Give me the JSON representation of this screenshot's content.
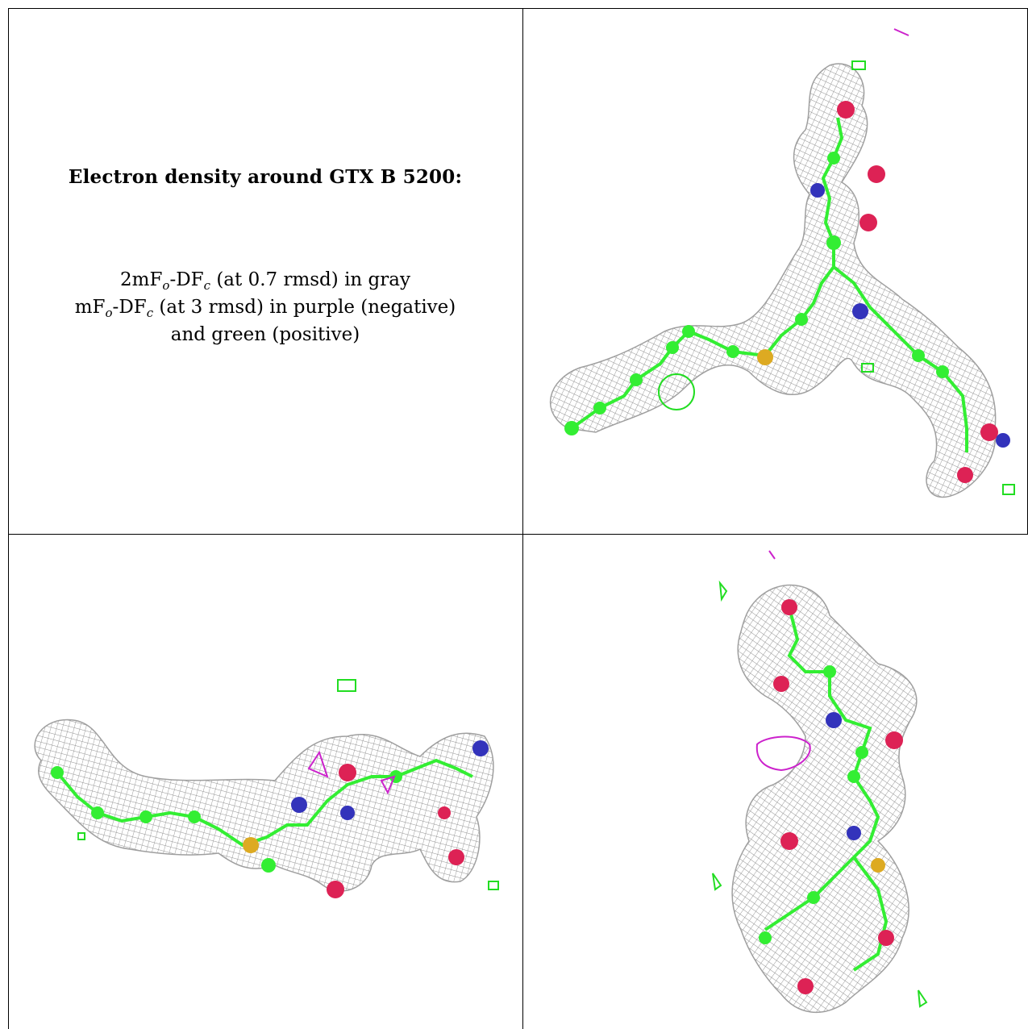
{
  "legend": {
    "title": "Electron density around GTX B 5200:",
    "line1": {
      "prefix": "2mF",
      "sub1": "o",
      "mid": "-DF",
      "sub2": "c",
      "suffix": " (at 0.7 rmsd) in gray"
    },
    "line2": {
      "prefix": "mF",
      "sub1": "o",
      "mid": "-DF",
      "sub2": "c",
      "suffix": " (at 3 rmsd) in purple (negative)"
    },
    "line3": "and green (positive)"
  },
  "colors": {
    "mesh_gray": "#a9a9a9",
    "carbon_green": "#33ee33",
    "positive_density_green": "#22dd22",
    "negative_density_purple": "#cc22cc",
    "oxygen_red": "#dd2255",
    "nitrogen_blue": "#3333bb",
    "sulfur_yellow": "#ddaa22",
    "grid_line": "#000000"
  },
  "panels": [
    {
      "name": "view-top-right"
    },
    {
      "name": "view-bottom-left"
    },
    {
      "name": "view-bottom-right"
    }
  ]
}
